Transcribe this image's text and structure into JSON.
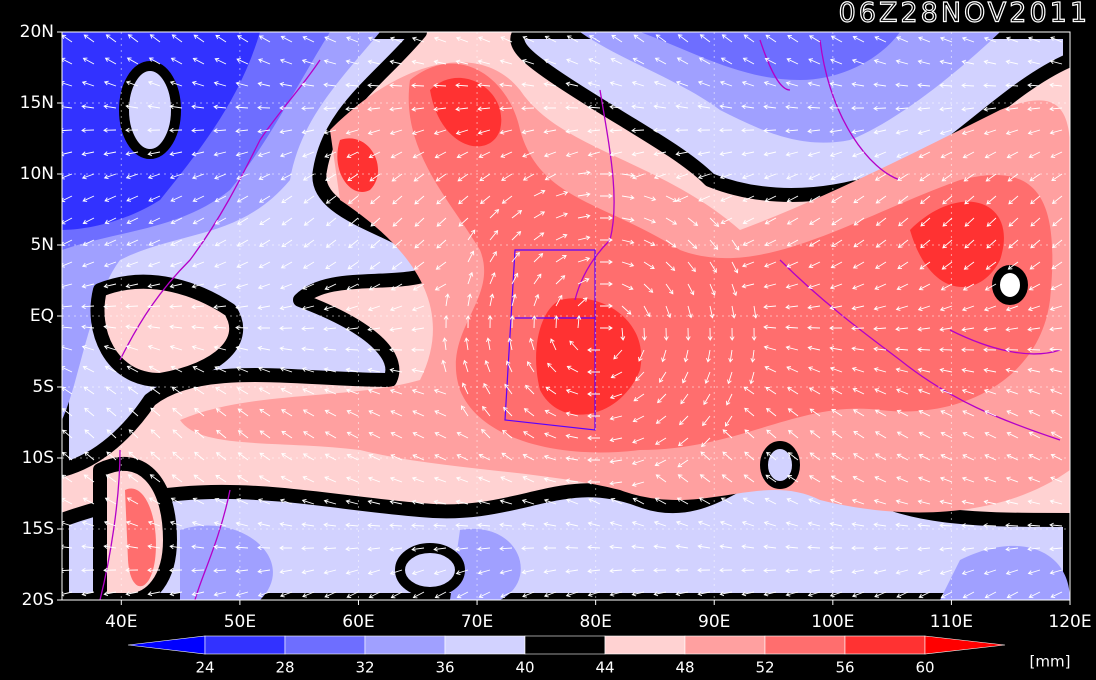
{
  "chart_data": {
    "type": "map",
    "title": "06Z28NOV2011",
    "xlim": [
      35,
      120
    ],
    "ylim": [
      -20,
      20
    ],
    "xticks": [
      {
        "value": 40,
        "label": "40E"
      },
      {
        "value": 50,
        "label": "50E"
      },
      {
        "value": 60,
        "label": "60E"
      },
      {
        "value": 70,
        "label": "70E"
      },
      {
        "value": 80,
        "label": "80E"
      },
      {
        "value": 90,
        "label": "90E"
      },
      {
        "value": 100,
        "label": "100E"
      },
      {
        "value": 110,
        "label": "110E"
      },
      {
        "value": 120,
        "label": "120E"
      }
    ],
    "yticks": [
      {
        "value": 20,
        "label": "20N"
      },
      {
        "value": 15,
        "label": "15N"
      },
      {
        "value": 10,
        "label": "10N"
      },
      {
        "value": 5,
        "label": "5N"
      },
      {
        "value": 0,
        "label": "EQ"
      },
      {
        "value": -5,
        "label": "5S"
      },
      {
        "value": -10,
        "label": "10S"
      },
      {
        "value": -15,
        "label": "15S"
      },
      {
        "value": -20,
        "label": "20S"
      }
    ],
    "grid": true,
    "colorbar": {
      "levels": [
        24,
        28,
        32,
        36,
        40,
        44,
        48,
        52,
        56,
        60
      ],
      "colors": [
        "#0000ff",
        "#3232ff",
        "#6e6eff",
        "#a0a0ff",
        "#d2d2ff",
        "#000000",
        "#ffd2d2",
        "#ffa0a0",
        "#ff6e6e",
        "#ff3232",
        "#ff0000"
      ],
      "unit": "[mm]"
    }
  }
}
